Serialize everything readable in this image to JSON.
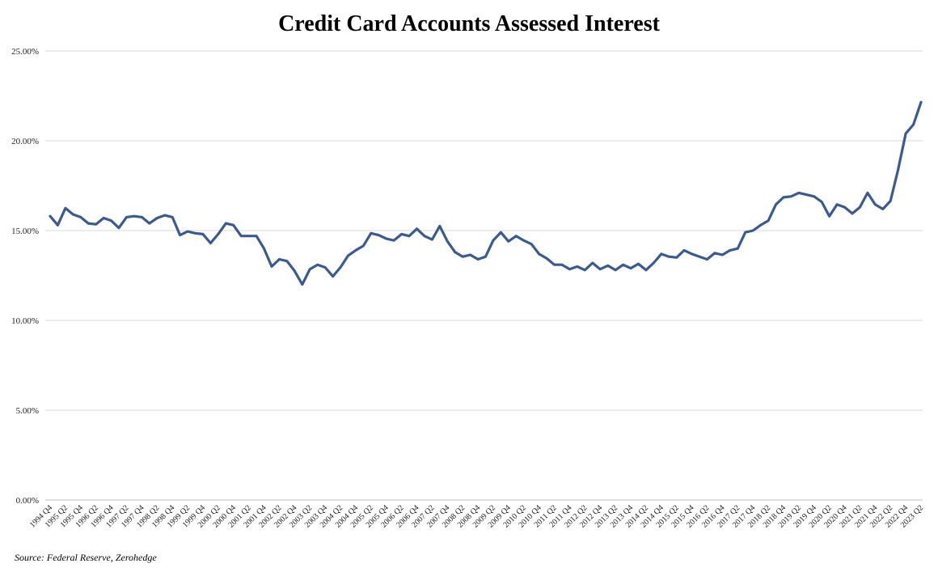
{
  "chart_data": {
    "type": "line",
    "title": "Credit Card Accounts Assessed Interest",
    "source": "Source: Federal Reserve, Zerohedge",
    "ylim": [
      0,
      25
    ],
    "y_ticks": [
      0,
      5,
      10,
      15,
      20,
      25
    ],
    "y_tick_labels": [
      "0.00%",
      "5.00%",
      "10.00%",
      "15.00%",
      "20.00%",
      "25.00%"
    ],
    "grid": "horizontal",
    "colors": {
      "line": "#3a5a92",
      "grid": "#d9d9d9"
    },
    "x_tick_labels": [
      "1994 Q4",
      "1995 Q2",
      "1995 Q4",
      "1996 Q2",
      "1996 Q4",
      "1997 Q2",
      "1997 Q4",
      "1998 Q2",
      "1998 Q4",
      "1999 Q2",
      "1999 Q4",
      "2000 Q2",
      "2000 Q4",
      "2001 Q2",
      "2001 Q4",
      "2002 Q2",
      "2002 Q4",
      "2003 Q2",
      "2003 Q4",
      "2004 Q2",
      "2004 Q4",
      "2005 Q2",
      "2005 Q4",
      "2006 Q2",
      "2006 Q4",
      "2007 Q2",
      "2007 Q4",
      "2008 Q2",
      "2008 Q4",
      "2009 Q2",
      "2009 Q4",
      "2010 Q2",
      "2010 Q4",
      "2011 Q2",
      "2011 Q4",
      "2012 Q2",
      "2012 Q4",
      "2013 Q2",
      "2013 Q4",
      "2014 Q2",
      "2014 Q4",
      "2015 Q2",
      "2015 Q4",
      "2016 Q2",
      "2016 Q4",
      "2017 Q2",
      "2017 Q4",
      "2018 Q2",
      "2018 Q4",
      "2019 Q2",
      "2019 Q4",
      "2020 Q2",
      "2020 Q4",
      "2021 Q2",
      "2021 Q4",
      "2022 Q2",
      "2022 Q4",
      "2023 Q2"
    ],
    "series": [
      {
        "values": [
          15.8,
          15.3,
          16.25,
          15.9,
          15.75,
          15.4,
          15.35,
          15.7,
          15.55,
          15.15,
          15.75,
          15.8,
          15.75,
          15.4,
          15.7,
          15.85,
          15.75,
          14.75,
          14.95,
          14.85,
          14.8,
          14.3,
          14.8,
          15.4,
          15.3,
          14.7,
          14.7,
          14.7,
          14.0,
          13.0,
          13.4,
          13.3,
          12.75,
          12.0,
          12.85,
          13.1,
          12.95,
          12.45,
          12.95,
          13.6,
          13.9,
          14.15,
          14.85,
          14.75,
          14.55,
          14.45,
          14.8,
          14.7,
          15.1,
          14.7,
          14.5,
          15.25,
          14.4,
          13.8,
          13.55,
          13.65,
          13.4,
          13.55,
          14.45,
          14.9,
          14.4,
          14.7,
          14.45,
          14.25,
          13.7,
          13.45,
          13.1,
          13.1,
          12.85,
          13.0,
          12.8,
          13.2,
          12.85,
          13.05,
          12.8,
          13.1,
          12.9,
          13.15,
          12.8,
          13.2,
          13.7,
          13.55,
          13.5,
          13.9,
          13.7,
          13.55,
          13.4,
          13.75,
          13.65,
          13.9,
          14.0,
          14.9,
          15.0,
          15.3,
          15.55,
          16.45,
          16.85,
          16.9,
          17.1,
          17.0,
          16.9,
          16.6,
          15.8,
          16.45,
          16.3,
          15.95,
          16.3,
          17.1,
          16.45,
          16.2,
          16.65,
          18.4,
          20.4,
          20.9,
          22.15
        ]
      }
    ]
  }
}
